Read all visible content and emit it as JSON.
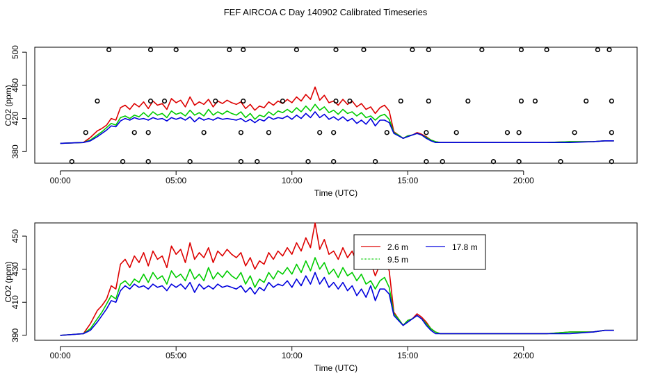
{
  "page_title": "FEF AIRCOA C  Day 140902  Calibrated Timeseries",
  "colors": {
    "s26": "#dd0000",
    "s95": "#00cc00",
    "s178": "#0000dd",
    "marker": "#000000"
  },
  "chart_data": [
    {
      "type": "line",
      "xlabel": "Time (UTC)",
      "ylabel": "CO2 (ppm)",
      "xlim": [
        -1.1,
        24.9
      ],
      "ylim": [
        366,
        506
      ],
      "x_ticks": [
        0,
        5,
        10,
        15,
        20
      ],
      "x_tick_labels": [
        "00:00",
        "05:00",
        "10:00",
        "15:00",
        "20:00"
      ],
      "y_ticks": [
        380,
        420,
        460,
        500
      ],
      "y_tick_labels": [
        "380",
        "420",
        "460",
        "500"
      ],
      "series": [
        {
          "key": "s26",
          "colorKey": "s26",
          "x": [
            0,
            1,
            1.3,
            1.6,
            1.8,
            2,
            2.2,
            2.4,
            2.6,
            2.8,
            3,
            3.2,
            3.4,
            3.6,
            3.8,
            4,
            4.2,
            4.4,
            4.6,
            4.8,
            5,
            5.2,
            5.4,
            5.6,
            5.8,
            6,
            6.2,
            6.4,
            6.6,
            6.8,
            7,
            7.2,
            7.4,
            7.6,
            7.8,
            8,
            8.2,
            8.4,
            8.6,
            8.8,
            9,
            9.2,
            9.4,
            9.6,
            9.8,
            10,
            10.2,
            10.4,
            10.6,
            10.8,
            11,
            11.2,
            11.4,
            11.6,
            11.8,
            12,
            12.2,
            12.4,
            12.6,
            12.8,
            13,
            13.2,
            13.4,
            13.6,
            13.8,
            14,
            14.2,
            14.4,
            14.6,
            14.8,
            15,
            15.2,
            15.4,
            15.6,
            15.8,
            16,
            16.2,
            16.4,
            16.6,
            17,
            18,
            19,
            20,
            21,
            22,
            23,
            23.5,
            23.9
          ],
          "y": [
            390,
            391,
            397,
            405,
            408,
            412,
            420,
            418,
            433,
            436,
            431,
            438,
            434,
            440,
            432,
            441,
            436,
            438,
            431,
            444,
            439,
            442,
            434,
            446,
            436,
            440,
            437,
            443,
            434,
            441,
            438,
            442,
            439,
            437,
            440,
            432,
            437,
            430,
            435,
            433,
            440,
            436,
            441,
            438,
            443,
            439,
            446,
            441,
            449,
            443,
            458,
            442,
            448,
            439,
            441,
            436,
            443,
            437,
            441,
            434,
            438,
            431,
            434,
            426,
            433,
            436,
            429,
            404,
            400,
            396,
            399,
            400,
            403,
            401,
            398,
            394,
            392,
            391,
            391,
            391,
            391,
            391,
            391,
            391,
            392,
            392,
            393,
            393
          ]
        },
        {
          "key": "s95",
          "colorKey": "s95",
          "x": [
            0,
            1,
            1.3,
            1.6,
            1.8,
            2,
            2.2,
            2.4,
            2.6,
            2.8,
            3,
            3.2,
            3.4,
            3.6,
            3.8,
            4,
            4.2,
            4.4,
            4.6,
            4.8,
            5,
            5.2,
            5.4,
            5.6,
            5.8,
            6,
            6.2,
            6.4,
            6.6,
            6.8,
            7,
            7.2,
            7.4,
            7.6,
            7.8,
            8,
            8.2,
            8.4,
            8.6,
            8.8,
            9,
            9.2,
            9.4,
            9.6,
            9.8,
            10,
            10.2,
            10.4,
            10.6,
            10.8,
            11,
            11.2,
            11.4,
            11.6,
            11.8,
            12,
            12.2,
            12.4,
            12.6,
            12.8,
            13,
            13.2,
            13.4,
            13.6,
            13.8,
            14,
            14.2,
            14.4,
            14.6,
            14.8,
            15,
            15.2,
            15.4,
            15.6,
            15.8,
            16,
            16.2,
            16.4,
            16.6,
            17,
            18,
            19,
            20,
            21,
            22,
            23,
            23.5,
            23.9
          ],
          "y": [
            390,
            391,
            394,
            400,
            404,
            409,
            414,
            412,
            421,
            423,
            420,
            424,
            422,
            427,
            422,
            428,
            424,
            426,
            421,
            429,
            425,
            427,
            423,
            430,
            424,
            427,
            423,
            431,
            424,
            428,
            425,
            429,
            426,
            424,
            428,
            421,
            426,
            419,
            424,
            422,
            428,
            424,
            429,
            427,
            431,
            427,
            433,
            428,
            435,
            429,
            437,
            430,
            434,
            427,
            430,
            425,
            431,
            426,
            428,
            423,
            427,
            421,
            423,
            418,
            423,
            425,
            419,
            403,
            400,
            396,
            399,
            400,
            402,
            400,
            397,
            394,
            392,
            391,
            391,
            391,
            391,
            391,
            391,
            391,
            392,
            392,
            393,
            393
          ]
        },
        {
          "key": "s178",
          "colorKey": "s178",
          "x": [
            0,
            1,
            1.3,
            1.6,
            1.8,
            2,
            2.2,
            2.4,
            2.6,
            2.8,
            3,
            3.2,
            3.4,
            3.6,
            3.8,
            4,
            4.2,
            4.4,
            4.6,
            4.8,
            5,
            5.2,
            5.4,
            5.6,
            5.8,
            6,
            6.2,
            6.4,
            6.6,
            6.8,
            7,
            7.2,
            7.4,
            7.6,
            7.8,
            8,
            8.2,
            8.4,
            8.6,
            8.8,
            9,
            9.2,
            9.4,
            9.6,
            9.8,
            10,
            10.2,
            10.4,
            10.6,
            10.8,
            11,
            11.2,
            11.4,
            11.6,
            11.8,
            12,
            12.2,
            12.4,
            12.6,
            12.8,
            13,
            13.2,
            13.4,
            13.6,
            13.8,
            14,
            14.2,
            14.4,
            14.6,
            14.8,
            15,
            15.2,
            15.4,
            15.6,
            15.8,
            16,
            16.2,
            16.4,
            16.6,
            17,
            18,
            19,
            20,
            21,
            22,
            23,
            23.5,
            23.9
          ],
          "y": [
            390,
            391,
            393,
            398,
            402,
            406,
            411,
            410,
            417,
            420,
            418,
            421,
            419,
            420,
            418,
            421,
            419,
            420,
            417,
            421,
            419,
            421,
            418,
            422,
            416,
            421,
            418,
            420,
            418,
            421,
            419,
            420,
            419,
            418,
            420,
            416,
            419,
            415,
            419,
            417,
            422,
            419,
            421,
            420,
            423,
            419,
            424,
            420,
            426,
            421,
            428,
            421,
            425,
            419,
            422,
            418,
            422,
            417,
            420,
            414,
            418,
            413,
            420,
            411,
            418,
            418,
            415,
            402,
            399,
            396,
            398,
            400,
            402,
            400,
            396,
            393,
            391,
            391,
            391,
            391,
            391,
            391,
            391,
            391,
            391,
            392,
            393,
            393
          ]
        }
      ],
      "markers": {
        "x": [
          0.5,
          1.1,
          1.6,
          2.1,
          2.7,
          3.2,
          3.8,
          3.8,
          3.9,
          3.9,
          4.5,
          5.0,
          5.6,
          6.2,
          6.7,
          7.3,
          7.8,
          7.8,
          7.9,
          7.9,
          8.5,
          9.0,
          9.6,
          10.2,
          10.7,
          11.2,
          11.8,
          11.8,
          11.9,
          11.9,
          12.5,
          13.1,
          13.6,
          14.1,
          14.7,
          15.2,
          15.8,
          15.8,
          15.9,
          15.9,
          16.5,
          17.1,
          17.6,
          18.2,
          18.7,
          19.3,
          19.8,
          19.8,
          19.9,
          19.9,
          20.5,
          21.0,
          21.6,
          22.2,
          22.7,
          23.2,
          23.7,
          23.8,
          23.8,
          23.8
        ],
        "y": [
          368,
          403,
          441,
          503,
          368,
          403,
          368,
          403,
          441,
          503,
          441,
          503,
          368,
          403,
          441,
          503,
          368,
          403,
          441,
          503,
          368,
          403,
          441,
          503,
          368,
          403,
          368,
          403,
          441,
          503,
          441,
          503,
          368,
          403,
          441,
          503,
          368,
          403,
          441,
          503,
          368,
          403,
          441,
          503,
          368,
          403,
          368,
          403,
          441,
          503,
          441,
          503,
          368,
          403,
          441,
          503,
          503,
          368,
          403,
          441
        ]
      }
    },
    {
      "type": "line",
      "xlabel": "Time (UTC)",
      "ylabel": "CO2 (ppm)",
      "xlim": [
        -1.1,
        24.9
      ],
      "ylim": [
        387,
        458
      ],
      "x_ticks": [
        0,
        5,
        10,
        15,
        20
      ],
      "x_tick_labels": [
        "00:00",
        "05:00",
        "10:00",
        "15:00",
        "20:00"
      ],
      "y_ticks": [
        390,
        410,
        430,
        450
      ],
      "y_tick_labels": [
        "390",
        "410",
        "430",
        "450"
      ],
      "legend": {
        "placement": "top-right",
        "entries": [
          {
            "label": "2.6 m",
            "colorKey": "s26"
          },
          {
            "label": "17.8 m",
            "colorKey": "s178"
          },
          {
            "label": "9.5 m",
            "colorKey": "s95"
          }
        ]
      },
      "series": [
        {
          "key": "s26",
          "colorKey": "s26",
          "from_panel": 0
        },
        {
          "key": "s95",
          "colorKey": "s95",
          "from_panel": 0
        },
        {
          "key": "s178",
          "colorKey": "s178",
          "from_panel": 0
        }
      ]
    }
  ]
}
